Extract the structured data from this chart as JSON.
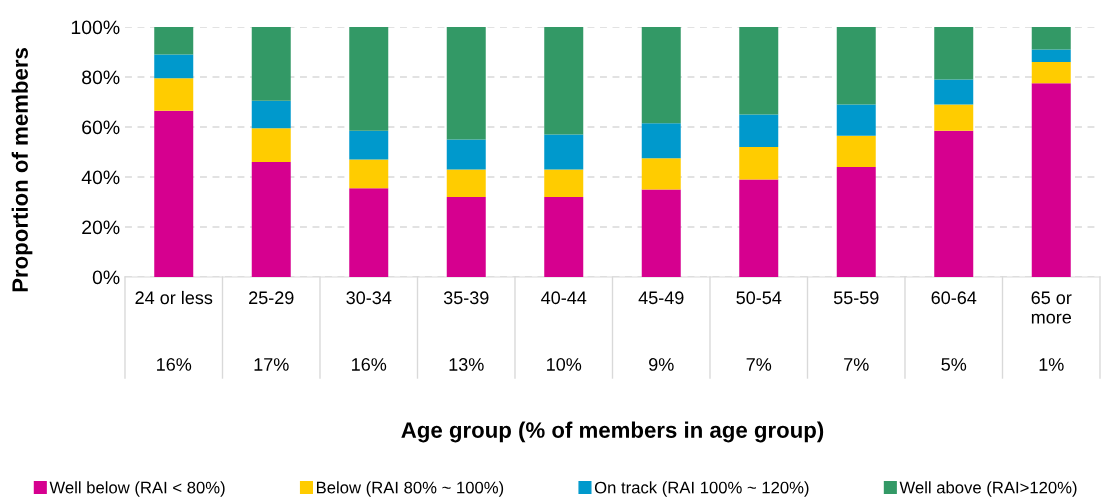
{
  "chart_data": {
    "type": "bar",
    "stacked": true,
    "xlabel": "Age group (% of members in age group)",
    "ylabel": "Proportion of members",
    "categories": [
      "24 or less",
      "25-29",
      "30-34",
      "35-39",
      "40-44",
      "45-49",
      "50-54",
      "55-59",
      "60-64",
      "65 or\nmore"
    ],
    "series": [
      {
        "name": "Well below (RAI < 80%)",
        "color": "#d6008f",
        "values": [
          66.5,
          46,
          35.5,
          32,
          32,
          35,
          39,
          44,
          58.5,
          77.5
        ]
      },
      {
        "name": "Below (RAI 80% ~ 100%)",
        "color": "#ffcc00",
        "values": [
          13,
          13.5,
          11.5,
          11,
          11,
          12.5,
          13,
          12.5,
          10.5,
          8.5
        ]
      },
      {
        "name": "On track (RAI 100% ~ 120%)",
        "color": "#0099cc",
        "values": [
          9.5,
          11,
          11.5,
          12,
          14,
          14,
          13,
          12.5,
          10,
          5
        ]
      },
      {
        "name": "Well above (RAI>120%)",
        "color": "#339966",
        "values": [
          11,
          29.5,
          41.5,
          45,
          43,
          38.5,
          35,
          31,
          21,
          9
        ]
      }
    ],
    "annotations": [
      "16%",
      "17%",
      "16%",
      "13%",
      "10%",
      "9%",
      "7%",
      "7%",
      "5%",
      "1%"
    ],
    "ylim": [
      0,
      100
    ],
    "yticks": [
      {
        "value": 0,
        "label": "0%"
      },
      {
        "value": 20,
        "label": "20%"
      },
      {
        "value": 40,
        "label": "40%"
      },
      {
        "value": 60,
        "label": "60%"
      },
      {
        "value": 80,
        "label": "80%"
      },
      {
        "value": 100,
        "label": "100%"
      }
    ],
    "grid": "y",
    "legend": "bottom"
  }
}
